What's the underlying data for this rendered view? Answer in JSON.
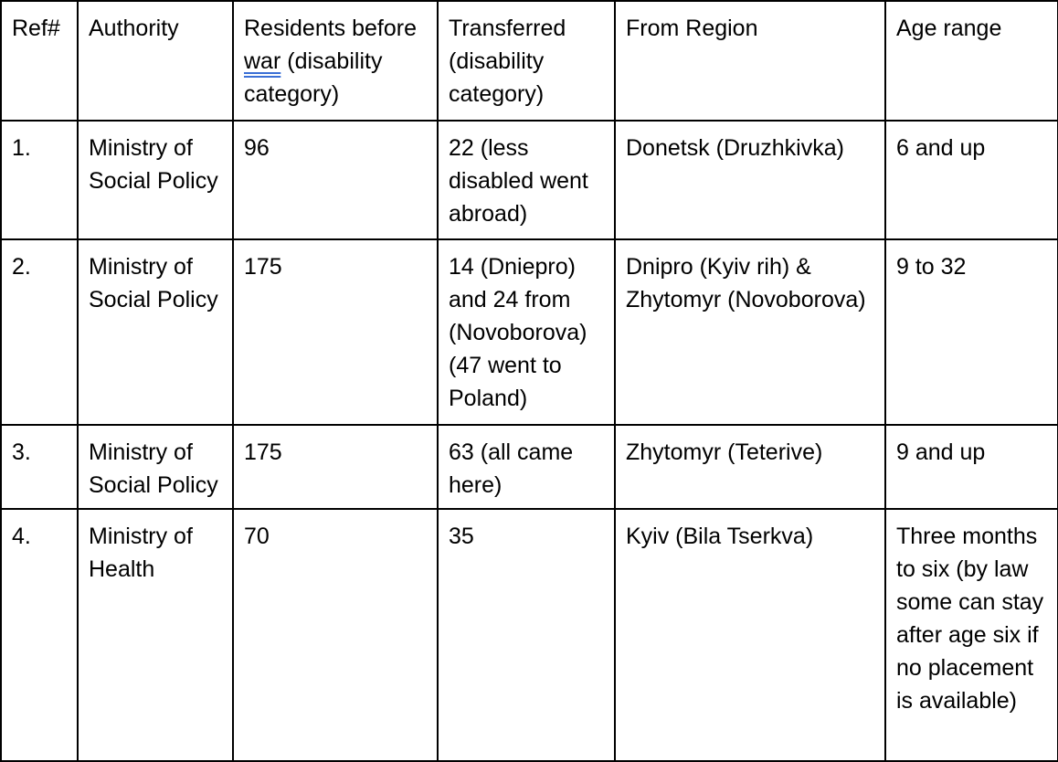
{
  "table": {
    "headers": {
      "ref": "Ref#",
      "authority": "Authority",
      "residents_marked": "war",
      "residents_rest": "Residents before",
      "residents_tail": " (disability category)",
      "transferred": "Transferred (disability category)",
      "from_region": "From Region",
      "age_range": "Age range"
    },
    "rows": [
      {
        "ref": "1.",
        "authority": "Ministry of Social Policy",
        "residents": "96",
        "transferred": "22 (less disabled went abroad)",
        "from_region": "Donetsk (Druzhkivka)",
        "age_range": "6 and up"
      },
      {
        "ref": "2.",
        "authority": "Ministry of Social Policy",
        "residents": "175",
        "transferred": "14 (Dniepro) and 24 from (Novoborova) (47 went to Poland)",
        "from_region": "Dnipro (Kyiv rih) & Zhytomyr (Novoborova)",
        "age_range": "9 to 32"
      },
      {
        "ref": "3.",
        "authority": "Ministry of Social Policy",
        "residents": "175",
        "transferred": "63 (all came here)",
        "from_region": "Zhytomyr (Teterive)",
        "age_range": "9 and up"
      },
      {
        "ref": "4.",
        "authority": "Ministry of Health",
        "residents": "70",
        "transferred": "35",
        "from_region": "Kyiv (Bila Tserkva)",
        "age_range": "Three months to six (by law some can stay after age six if no placement is available)"
      }
    ]
  }
}
